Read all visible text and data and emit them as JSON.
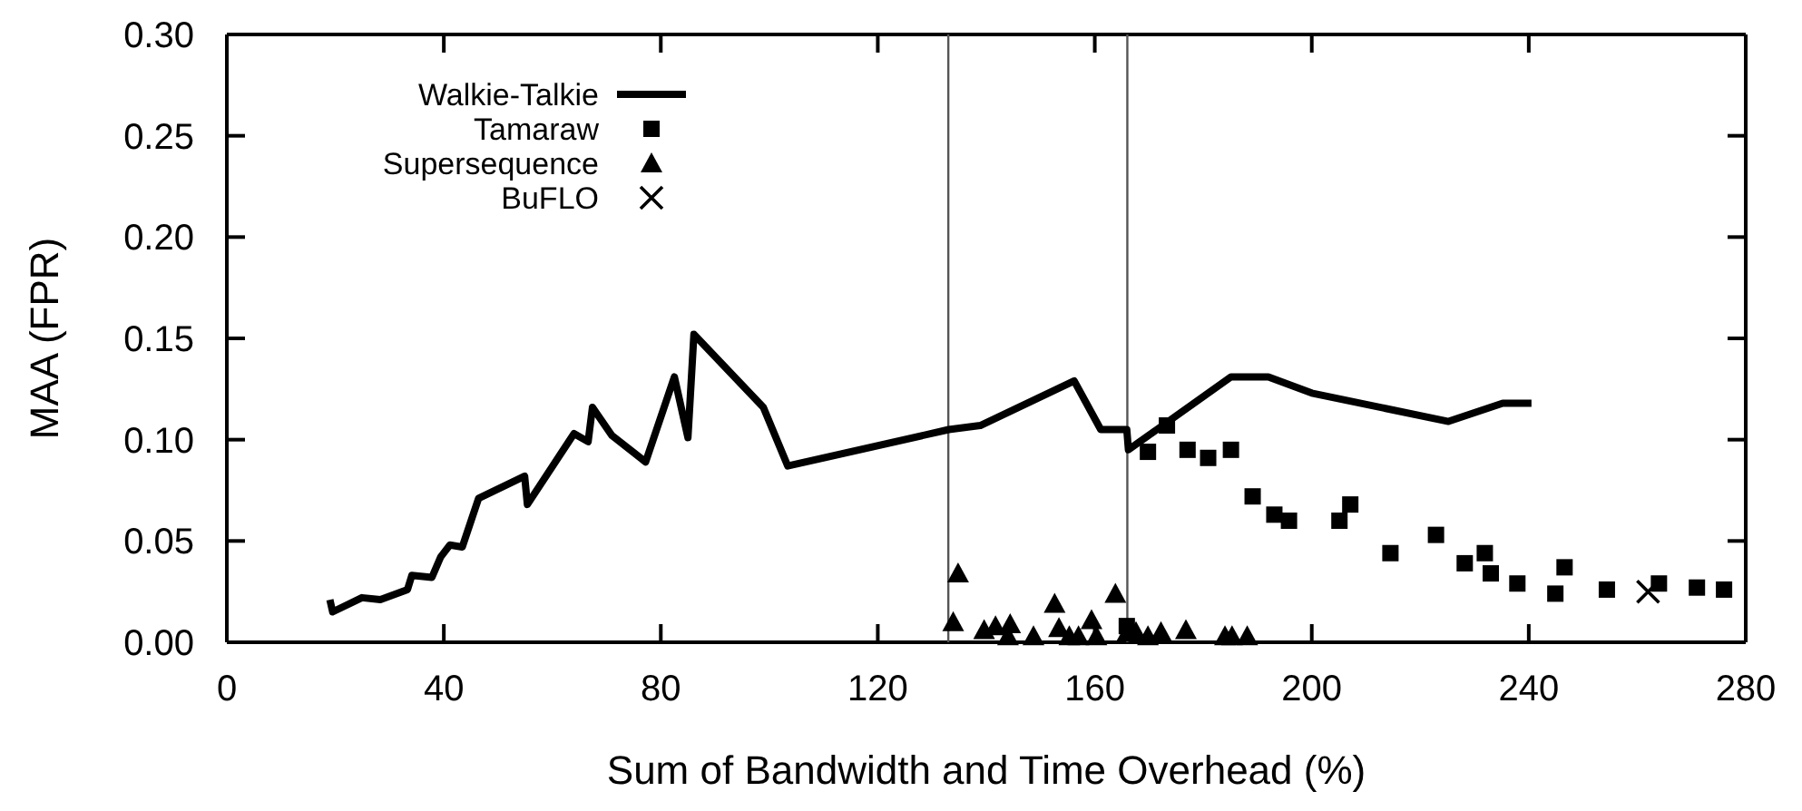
{
  "chart_data": {
    "type": "line",
    "xlabel": "Sum of Bandwidth and Time Overhead (%)",
    "ylabel": "MAA (FPR)",
    "xlim": [
      0,
      280
    ],
    "xticks": [
      0,
      40,
      80,
      120,
      160,
      200,
      240,
      280
    ],
    "ylim": [
      0,
      0.3
    ],
    "yticks": [
      {
        "value": 0,
        "label": "0.00"
      },
      {
        "value": 0.05,
        "label": "0.05"
      },
      {
        "value": 0.1,
        "label": "0.10"
      },
      {
        "value": 0.15,
        "label": "0.15"
      },
      {
        "value": 0.2,
        "label": "0.20"
      },
      {
        "value": 0.25,
        "label": "0.25"
      },
      {
        "value": 0.3,
        "label": "0.30"
      }
    ],
    "grid": false,
    "legend": "top left",
    "ref_lines": [
      {
        "axis": "x",
        "value": 133,
        "color": "#555555"
      },
      {
        "axis": "x",
        "value": 166,
        "color": "#555555"
      }
    ],
    "series": [
      {
        "name": "Walkie-Talkie",
        "color": "#000000",
        "marker": "none",
        "x": [
          19,
          19.5,
          24.9,
          28.3,
          33.3,
          34.1,
          37.8,
          39.4,
          41.1,
          43.4,
          46.4,
          54.9,
          55.4,
          64,
          66.6,
          67.4,
          71,
          77.2,
          82.5,
          85,
          86.1,
          98.9,
          103.4,
          133.1,
          138.9,
          156.2,
          161.1,
          165.9,
          166.2,
          185.1,
          192,
          200,
          225.2,
          235.2,
          240.5
        ],
        "values": [
          0.021,
          0.015,
          0.022,
          0.021,
          0.026,
          0.033,
          0.032,
          0.042,
          0.048,
          0.047,
          0.071,
          0.082,
          0.068,
          0.103,
          0.099,
          0.116,
          0.102,
          0.089,
          0.131,
          0.101,
          0.152,
          0.116,
          0.087,
          0.105,
          0.107,
          0.129,
          0.105,
          0.105,
          0.095,
          0.131,
          0.131,
          0.123,
          0.109,
          0.118,
          0.118
        ]
      },
      {
        "name": "Tamaraw",
        "type": "scatter",
        "color": "#000000",
        "marker": "square",
        "x": [
          165.9,
          169.8,
          173.3,
          177.1,
          180.9,
          185.1,
          189.1,
          193.1,
          195.8,
          205.1,
          207.1,
          214.5,
          222.9,
          228.2,
          231.9,
          233,
          237.9,
          244.9,
          246.6,
          254.4,
          264,
          271,
          276
        ],
        "values": [
          0.008,
          0.094,
          0.107,
          0.095,
          0.091,
          0.095,
          0.072,
          0.063,
          0.06,
          0.06,
          0.068,
          0.044,
          0.053,
          0.039,
          0.044,
          0.034,
          0.029,
          0.024,
          0.037,
          0.026,
          0.029,
          0.027,
          0.026
        ]
      },
      {
        "name": "Supersequence",
        "type": "scatter",
        "color": "#000000",
        "marker": "triangle",
        "x": [
          134.8,
          133.9,
          139.6,
          141.7,
          144.4,
          144,
          148.7,
          152.6,
          153.4,
          155.3,
          157,
          159.4,
          160.3,
          163.8,
          166,
          167.6,
          169.8,
          172.2,
          176.8,
          184,
          185.3,
          188.1
        ],
        "values": [
          0.034,
          0.01,
          0.006,
          0.008,
          0.009,
          0.003,
          0.003,
          0.019,
          0.007,
          0.003,
          0.003,
          0.011,
          0.003,
          0.024,
          0.005,
          0.005,
          0.003,
          0.005,
          0.006,
          0.003,
          0.003,
          0.003
        ]
      },
      {
        "name": "BuFLO",
        "type": "scatter",
        "color": "#000000",
        "marker": "cross",
        "x": [
          262
        ],
        "values": [
          0.025
        ]
      }
    ]
  }
}
